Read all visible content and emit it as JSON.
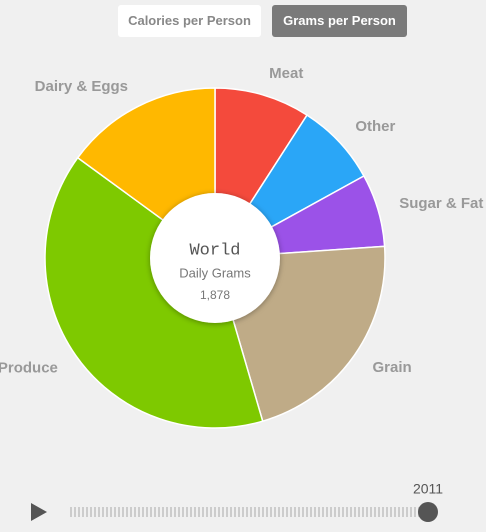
{
  "buttons": [
    "Calories per Person",
    "Grams per Person"
  ],
  "year": "2011",
  "chart_data": {
    "type": "donut",
    "center_title": "World",
    "center_subtitle": "Daily Grams",
    "total": 1878,
    "total_label": "1,878",
    "categories": [
      "Meat",
      "Other",
      "Sugar & Fat",
      "Grain",
      "Produce",
      "Dairy & Eggs"
    ],
    "values": [
      171,
      148,
      130,
      405,
      743,
      281
    ],
    "colors": [
      "#f44a3c",
      "#2aa6f7",
      "#9b52e8",
      "#bfab87",
      "#7ec900",
      "#ffb800"
    ]
  }
}
